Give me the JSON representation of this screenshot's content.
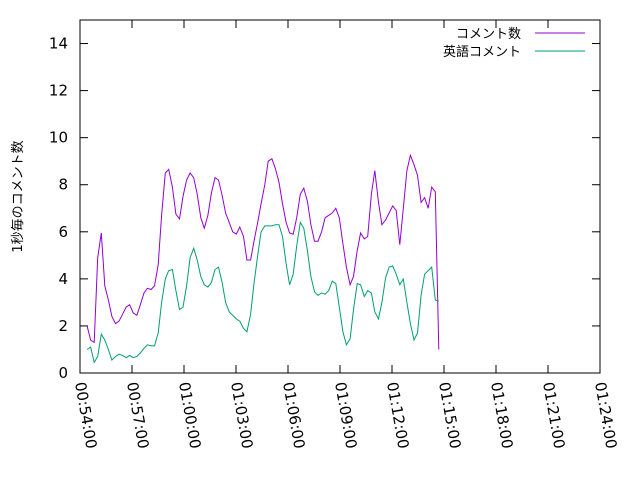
{
  "chart_data": {
    "type": "line",
    "title": "",
    "xlabel": "",
    "ylabel": "1秒毎のコメント数",
    "xlim": [
      0,
      30
    ],
    "ylim": [
      0,
      15
    ],
    "x_ticks": [
      {
        "v": 0,
        "label": "00:54:00"
      },
      {
        "v": 3,
        "label": "00:57:00"
      },
      {
        "v": 6,
        "label": "01:00:00"
      },
      {
        "v": 9,
        "label": "01:03:00"
      },
      {
        "v": 12,
        "label": "01:06:00"
      },
      {
        "v": 15,
        "label": "01:09:00"
      },
      {
        "v": 18,
        "label": "01:12:00"
      },
      {
        "v": 21,
        "label": "01:15:00"
      },
      {
        "v": 24,
        "label": "01:18:00"
      },
      {
        "v": 27,
        "label": "01:21:00"
      },
      {
        "v": 30,
        "label": "01:24:00"
      }
    ],
    "y_ticks": [
      {
        "v": 0,
        "label": "0"
      },
      {
        "v": 2,
        "label": "2"
      },
      {
        "v": 4,
        "label": "4"
      },
      {
        "v": 6,
        "label": "6"
      },
      {
        "v": 8,
        "label": "8"
      },
      {
        "v": 10,
        "label": "10"
      },
      {
        "v": 12,
        "label": "12"
      },
      {
        "v": 14,
        "label": "14"
      }
    ],
    "grid": false,
    "legend_position": "top-right",
    "series": [
      {
        "name": "コメント数",
        "color": "#9400d3",
        "points": [
          [
            0.41,
            2.0
          ],
          [
            0.61,
            1.4
          ],
          [
            0.82,
            1.3
          ],
          [
            1.02,
            4.9
          ],
          [
            1.23,
            5.95
          ],
          [
            1.43,
            3.7
          ],
          [
            1.64,
            3.1
          ],
          [
            1.84,
            2.4
          ],
          [
            2.05,
            2.1
          ],
          [
            2.25,
            2.2
          ],
          [
            2.46,
            2.5
          ],
          [
            2.66,
            2.8
          ],
          [
            2.87,
            2.9
          ],
          [
            3.07,
            2.55
          ],
          [
            3.28,
            2.45
          ],
          [
            3.48,
            2.9
          ],
          [
            3.69,
            3.4
          ],
          [
            3.89,
            3.6
          ],
          [
            4.1,
            3.55
          ],
          [
            4.3,
            3.7
          ],
          [
            4.51,
            4.6
          ],
          [
            4.71,
            6.7
          ],
          [
            4.92,
            8.5
          ],
          [
            5.12,
            8.65
          ],
          [
            5.33,
            7.9
          ],
          [
            5.53,
            6.75
          ],
          [
            5.74,
            6.55
          ],
          [
            5.94,
            7.5
          ],
          [
            6.15,
            8.2
          ],
          [
            6.35,
            8.5
          ],
          [
            6.56,
            8.3
          ],
          [
            6.76,
            7.6
          ],
          [
            6.97,
            6.6
          ],
          [
            7.17,
            6.15
          ],
          [
            7.38,
            6.7
          ],
          [
            7.58,
            7.65
          ],
          [
            7.79,
            8.3
          ],
          [
            7.99,
            8.2
          ],
          [
            8.2,
            7.55
          ],
          [
            8.4,
            6.8
          ],
          [
            8.61,
            6.4
          ],
          [
            8.81,
            6.0
          ],
          [
            9.02,
            5.9
          ],
          [
            9.22,
            6.2
          ],
          [
            9.43,
            5.8
          ],
          [
            9.63,
            4.8
          ],
          [
            9.84,
            4.8
          ],
          [
            10.04,
            5.6
          ],
          [
            10.25,
            6.4
          ],
          [
            10.45,
            7.2
          ],
          [
            10.66,
            8.0
          ],
          [
            10.86,
            9.0
          ],
          [
            11.07,
            9.1
          ],
          [
            11.27,
            8.7
          ],
          [
            11.48,
            8.1
          ],
          [
            11.68,
            7.2
          ],
          [
            11.89,
            6.4
          ],
          [
            12.09,
            5.95
          ],
          [
            12.3,
            5.9
          ],
          [
            12.5,
            6.6
          ],
          [
            12.71,
            7.6
          ],
          [
            12.91,
            7.85
          ],
          [
            13.12,
            7.3
          ],
          [
            13.32,
            6.3
          ],
          [
            13.53,
            5.6
          ],
          [
            13.73,
            5.6
          ],
          [
            13.94,
            6.0
          ],
          [
            14.14,
            6.6
          ],
          [
            14.35,
            6.7
          ],
          [
            14.55,
            6.8
          ],
          [
            14.76,
            7.0
          ],
          [
            14.96,
            6.6
          ],
          [
            15.17,
            5.5
          ],
          [
            15.37,
            4.5
          ],
          [
            15.58,
            3.75
          ],
          [
            15.78,
            4.1
          ],
          [
            15.99,
            5.2
          ],
          [
            16.19,
            5.95
          ],
          [
            16.4,
            5.7
          ],
          [
            16.6,
            5.8
          ],
          [
            16.81,
            7.6
          ],
          [
            17.01,
            8.6
          ],
          [
            17.22,
            7.25
          ],
          [
            17.42,
            6.3
          ],
          [
            17.63,
            6.5
          ],
          [
            17.83,
            6.8
          ],
          [
            18.04,
            7.1
          ],
          [
            18.24,
            6.9
          ],
          [
            18.45,
            5.45
          ],
          [
            18.65,
            7.0
          ],
          [
            18.86,
            8.6
          ],
          [
            19.06,
            9.25
          ],
          [
            19.27,
            8.85
          ],
          [
            19.47,
            8.4
          ],
          [
            19.68,
            7.25
          ],
          [
            19.88,
            7.45
          ],
          [
            20.09,
            7.0
          ],
          [
            20.29,
            7.9
          ],
          [
            20.5,
            7.7
          ],
          [
            20.7,
            1.0
          ]
        ]
      },
      {
        "name": "英語コメント",
        "color": "#009e73",
        "points": [
          [
            0.41,
            1.0
          ],
          [
            0.61,
            1.1
          ],
          [
            0.82,
            0.45
          ],
          [
            1.02,
            0.7
          ],
          [
            1.23,
            1.65
          ],
          [
            1.43,
            1.4
          ],
          [
            1.64,
            1.0
          ],
          [
            1.84,
            0.55
          ],
          [
            2.05,
            0.7
          ],
          [
            2.25,
            0.8
          ],
          [
            2.46,
            0.75
          ],
          [
            2.66,
            0.65
          ],
          [
            2.87,
            0.75
          ],
          [
            3.07,
            0.65
          ],
          [
            3.28,
            0.7
          ],
          [
            3.48,
            0.85
          ],
          [
            3.69,
            1.05
          ],
          [
            3.89,
            1.2
          ],
          [
            4.1,
            1.15
          ],
          [
            4.3,
            1.15
          ],
          [
            4.51,
            1.7
          ],
          [
            4.71,
            3.0
          ],
          [
            4.92,
            4.0
          ],
          [
            5.12,
            4.35
          ],
          [
            5.33,
            4.4
          ],
          [
            5.53,
            3.5
          ],
          [
            5.74,
            2.7
          ],
          [
            5.94,
            2.8
          ],
          [
            6.15,
            3.7
          ],
          [
            6.35,
            4.9
          ],
          [
            6.56,
            5.3
          ],
          [
            6.76,
            4.8
          ],
          [
            6.97,
            4.1
          ],
          [
            7.17,
            3.75
          ],
          [
            7.38,
            3.65
          ],
          [
            7.58,
            3.85
          ],
          [
            7.79,
            4.4
          ],
          [
            7.99,
            4.5
          ],
          [
            8.2,
            3.85
          ],
          [
            8.4,
            3.0
          ],
          [
            8.61,
            2.6
          ],
          [
            8.81,
            2.45
          ],
          [
            9.02,
            2.3
          ],
          [
            9.22,
            2.2
          ],
          [
            9.43,
            1.9
          ],
          [
            9.63,
            1.75
          ],
          [
            9.84,
            2.5
          ],
          [
            10.04,
            3.8
          ],
          [
            10.25,
            5.0
          ],
          [
            10.45,
            6.0
          ],
          [
            10.66,
            6.25
          ],
          [
            10.86,
            6.25
          ],
          [
            11.07,
            6.25
          ],
          [
            11.27,
            6.3
          ],
          [
            11.48,
            6.3
          ],
          [
            11.68,
            5.8
          ],
          [
            11.89,
            4.65
          ],
          [
            12.09,
            3.75
          ],
          [
            12.3,
            4.2
          ],
          [
            12.5,
            5.4
          ],
          [
            12.71,
            6.4
          ],
          [
            12.91,
            6.15
          ],
          [
            13.12,
            5.2
          ],
          [
            13.32,
            4.1
          ],
          [
            13.53,
            3.45
          ],
          [
            13.73,
            3.3
          ],
          [
            13.94,
            3.4
          ],
          [
            14.14,
            3.35
          ],
          [
            14.35,
            3.5
          ],
          [
            14.55,
            3.9
          ],
          [
            14.76,
            3.8
          ],
          [
            14.96,
            2.8
          ],
          [
            15.17,
            1.75
          ],
          [
            15.37,
            1.2
          ],
          [
            15.58,
            1.45
          ],
          [
            15.78,
            2.7
          ],
          [
            15.99,
            3.8
          ],
          [
            16.19,
            3.75
          ],
          [
            16.4,
            3.25
          ],
          [
            16.6,
            3.5
          ],
          [
            16.81,
            3.4
          ],
          [
            17.01,
            2.6
          ],
          [
            17.22,
            2.3
          ],
          [
            17.42,
            3.0
          ],
          [
            17.63,
            4.05
          ],
          [
            17.83,
            4.5
          ],
          [
            18.04,
            4.55
          ],
          [
            18.24,
            4.2
          ],
          [
            18.45,
            3.75
          ],
          [
            18.65,
            4.0
          ],
          [
            18.86,
            3.0
          ],
          [
            19.06,
            2.1
          ],
          [
            19.27,
            1.4
          ],
          [
            19.47,
            1.7
          ],
          [
            19.68,
            3.3
          ],
          [
            19.88,
            4.2
          ],
          [
            20.09,
            4.35
          ],
          [
            20.29,
            4.5
          ],
          [
            20.5,
            3.1
          ],
          [
            20.7,
            3.05
          ]
        ]
      }
    ]
  }
}
